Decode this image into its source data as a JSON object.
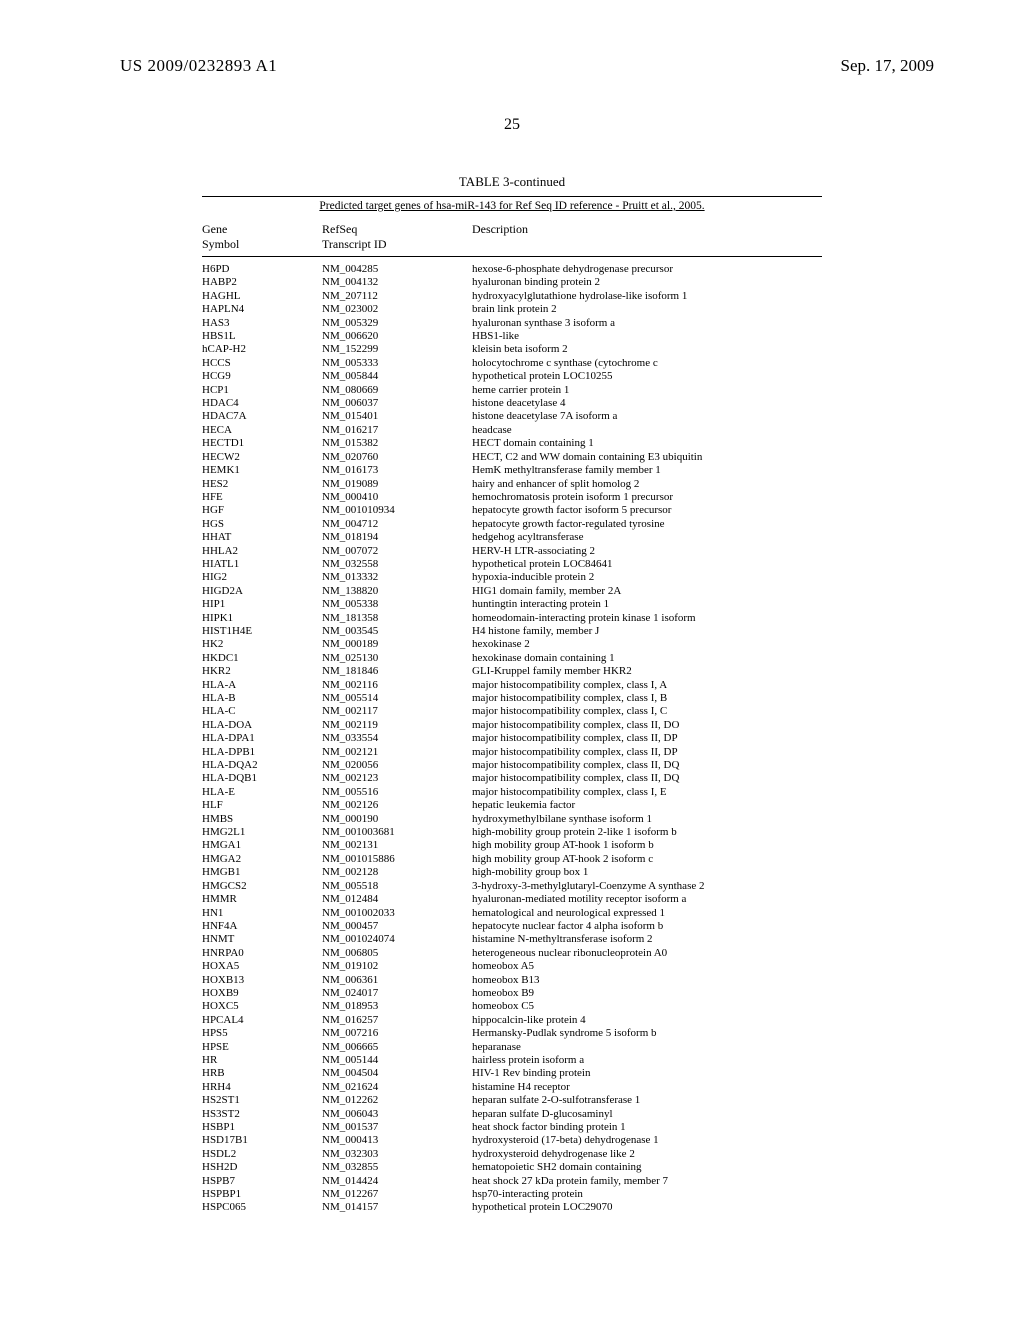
{
  "header": {
    "left": "US 2009/0232893 A1",
    "right": "Sep. 17, 2009"
  },
  "page_number": "25",
  "table": {
    "caption": "TABLE 3-continued",
    "subtitle": "Predicted target genes of hsa-miR-143 for Ref Seq ID reference - Pruitt et al., 2005.",
    "columns": {
      "gene": "Gene\nSymbol",
      "refseq": "RefSeq\nTranscript ID",
      "desc": "Description"
    },
    "rows": [
      {
        "g": "H6PD",
        "r": "NM_004285",
        "d": "hexose-6-phosphate dehydrogenase precursor"
      },
      {
        "g": "HABP2",
        "r": "NM_004132",
        "d": "hyaluronan binding protein 2"
      },
      {
        "g": "HAGHL",
        "r": "NM_207112",
        "d": "hydroxyacylglutathione hydrolase-like isoform 1"
      },
      {
        "g": "HAPLN4",
        "r": "NM_023002",
        "d": "brain link protein 2"
      },
      {
        "g": "HAS3",
        "r": "NM_005329",
        "d": "hyaluronan synthase 3 isoform a"
      },
      {
        "g": "HBS1L",
        "r": "NM_006620",
        "d": "HBS1-like"
      },
      {
        "g": "hCAP-H2",
        "r": "NM_152299",
        "d": "kleisin beta isoform 2"
      },
      {
        "g": "HCCS",
        "r": "NM_005333",
        "d": "holocytochrome c synthase (cytochrome c"
      },
      {
        "g": "HCG9",
        "r": "NM_005844",
        "d": "hypothetical protein LOC10255"
      },
      {
        "g": "HCP1",
        "r": "NM_080669",
        "d": "heme carrier protein 1"
      },
      {
        "g": "HDAC4",
        "r": "NM_006037",
        "d": "histone deacetylase 4"
      },
      {
        "g": "HDAC7A",
        "r": "NM_015401",
        "d": "histone deacetylase 7A isoform a"
      },
      {
        "g": "HECA",
        "r": "NM_016217",
        "d": "headcase"
      },
      {
        "g": "HECTD1",
        "r": "NM_015382",
        "d": "HECT domain containing 1"
      },
      {
        "g": "HECW2",
        "r": "NM_020760",
        "d": "HECT, C2 and WW domain containing E3 ubiquitin"
      },
      {
        "g": "HEMK1",
        "r": "NM_016173",
        "d": "HemK methyltransferase family member 1"
      },
      {
        "g": "HES2",
        "r": "NM_019089",
        "d": "hairy and enhancer of split homolog 2"
      },
      {
        "g": "HFE",
        "r": "NM_000410",
        "d": "hemochromatosis protein isoform 1 precursor"
      },
      {
        "g": "HGF",
        "r": "NM_001010934",
        "d": "hepatocyte growth factor isoform 5 precursor"
      },
      {
        "g": "HGS",
        "r": "NM_004712",
        "d": "hepatocyte growth factor-regulated tyrosine"
      },
      {
        "g": "HHAT",
        "r": "NM_018194",
        "d": "hedgehog acyltransferase"
      },
      {
        "g": "HHLA2",
        "r": "NM_007072",
        "d": "HERV-H LTR-associating 2"
      },
      {
        "g": "HIATL1",
        "r": "NM_032558",
        "d": "hypothetical protein LOC84641"
      },
      {
        "g": "HIG2",
        "r": "NM_013332",
        "d": "hypoxia-inducible protein 2"
      },
      {
        "g": "HIGD2A",
        "r": "NM_138820",
        "d": "HIG1 domain family, member 2A"
      },
      {
        "g": "HIP1",
        "r": "NM_005338",
        "d": "huntingtin interacting protein 1"
      },
      {
        "g": "HIPK1",
        "r": "NM_181358",
        "d": "homeodomain-interacting protein kinase 1 isoform"
      },
      {
        "g": "HIST1H4E",
        "r": "NM_003545",
        "d": "H4 histone family, member J"
      },
      {
        "g": "HK2",
        "r": "NM_000189",
        "d": "hexokinase 2"
      },
      {
        "g": "HKDC1",
        "r": "NM_025130",
        "d": "hexokinase domain containing 1"
      },
      {
        "g": "HKR2",
        "r": "NM_181846",
        "d": "GLI-Kruppel family member HKR2"
      },
      {
        "g": "HLA-A",
        "r": "NM_002116",
        "d": "major histocompatibility complex, class I, A"
      },
      {
        "g": "HLA-B",
        "r": "NM_005514",
        "d": "major histocompatibility complex, class I, B"
      },
      {
        "g": "HLA-C",
        "r": "NM_002117",
        "d": "major histocompatibility complex, class I, C"
      },
      {
        "g": "HLA-DOA",
        "r": "NM_002119",
        "d": "major histocompatibility complex, class II, DO"
      },
      {
        "g": "HLA-DPA1",
        "r": "NM_033554",
        "d": "major histocompatibility complex, class II, DP"
      },
      {
        "g": "HLA-DPB1",
        "r": "NM_002121",
        "d": "major histocompatibility complex, class II, DP"
      },
      {
        "g": "HLA-DQA2",
        "r": "NM_020056",
        "d": "major histocompatibility complex, class II, DQ"
      },
      {
        "g": "HLA-DQB1",
        "r": "NM_002123",
        "d": "major histocompatibility complex, class II, DQ"
      },
      {
        "g": "HLA-E",
        "r": "NM_005516",
        "d": "major histocompatibility complex, class I, E"
      },
      {
        "g": "HLF",
        "r": "NM_002126",
        "d": "hepatic leukemia factor"
      },
      {
        "g": "HMBS",
        "r": "NM_000190",
        "d": "hydroxymethylbilane synthase isoform 1"
      },
      {
        "g": "HMG2L1",
        "r": "NM_001003681",
        "d": "high-mobility group protein 2-like 1 isoform b"
      },
      {
        "g": "HMGA1",
        "r": "NM_002131",
        "d": "high mobility group AT-hook 1 isoform b"
      },
      {
        "g": "HMGA2",
        "r": "NM_001015886",
        "d": "high mobility group AT-hook 2 isoform c"
      },
      {
        "g": "HMGB1",
        "r": "NM_002128",
        "d": "high-mobility group box 1"
      },
      {
        "g": "HMGCS2",
        "r": "NM_005518",
        "d": "3-hydroxy-3-methylglutaryl-Coenzyme A synthase 2"
      },
      {
        "g": "HMMR",
        "r": "NM_012484",
        "d": "hyaluronan-mediated motility receptor isoform a"
      },
      {
        "g": "HN1",
        "r": "NM_001002033",
        "d": "hematological and neurological expressed 1"
      },
      {
        "g": "HNF4A",
        "r": "NM_000457",
        "d": "hepatocyte nuclear factor 4 alpha isoform b"
      },
      {
        "g": "HNMT",
        "r": "NM_001024074",
        "d": "histamine N-methyltransferase isoform 2"
      },
      {
        "g": "HNRPA0",
        "r": "NM_006805",
        "d": "heterogeneous nuclear ribonucleoprotein A0"
      },
      {
        "g": "HOXA5",
        "r": "NM_019102",
        "d": "homeobox A5"
      },
      {
        "g": "HOXB13",
        "r": "NM_006361",
        "d": "homeobox B13"
      },
      {
        "g": "HOXB9",
        "r": "NM_024017",
        "d": "homeobox B9"
      },
      {
        "g": "HOXC5",
        "r": "NM_018953",
        "d": "homeobox C5"
      },
      {
        "g": "HPCAL4",
        "r": "NM_016257",
        "d": "hippocalcin-like protein 4"
      },
      {
        "g": "HPS5",
        "r": "NM_007216",
        "d": "Hermansky-Pudlak syndrome 5 isoform b"
      },
      {
        "g": "HPSE",
        "r": "NM_006665",
        "d": "heparanase"
      },
      {
        "g": "HR",
        "r": "NM_005144",
        "d": "hairless protein isoform a"
      },
      {
        "g": "HRB",
        "r": "NM_004504",
        "d": "HIV-1 Rev binding protein"
      },
      {
        "g": "HRH4",
        "r": "NM_021624",
        "d": "histamine H4 receptor"
      },
      {
        "g": "HS2ST1",
        "r": "NM_012262",
        "d": "heparan sulfate 2-O-sulfotransferase 1"
      },
      {
        "g": "HS3ST2",
        "r": "NM_006043",
        "d": "heparan sulfate D-glucosaminyl"
      },
      {
        "g": "HSBP1",
        "r": "NM_001537",
        "d": "heat shock factor binding protein 1"
      },
      {
        "g": "HSD17B1",
        "r": "NM_000413",
        "d": "hydroxysteroid (17-beta) dehydrogenase 1"
      },
      {
        "g": "HSDL2",
        "r": "NM_032303",
        "d": "hydroxysteroid dehydrogenase like 2"
      },
      {
        "g": "HSH2D",
        "r": "NM_032855",
        "d": "hematopoietic SH2 domain containing"
      },
      {
        "g": "HSPB7",
        "r": "NM_014424",
        "d": "heat shock 27 kDa protein family, member 7"
      },
      {
        "g": "HSPBP1",
        "r": "NM_012267",
        "d": "hsp70-interacting protein"
      },
      {
        "g": "HSPC065",
        "r": "NM_014157",
        "d": "hypothetical protein LOC29070"
      }
    ]
  }
}
